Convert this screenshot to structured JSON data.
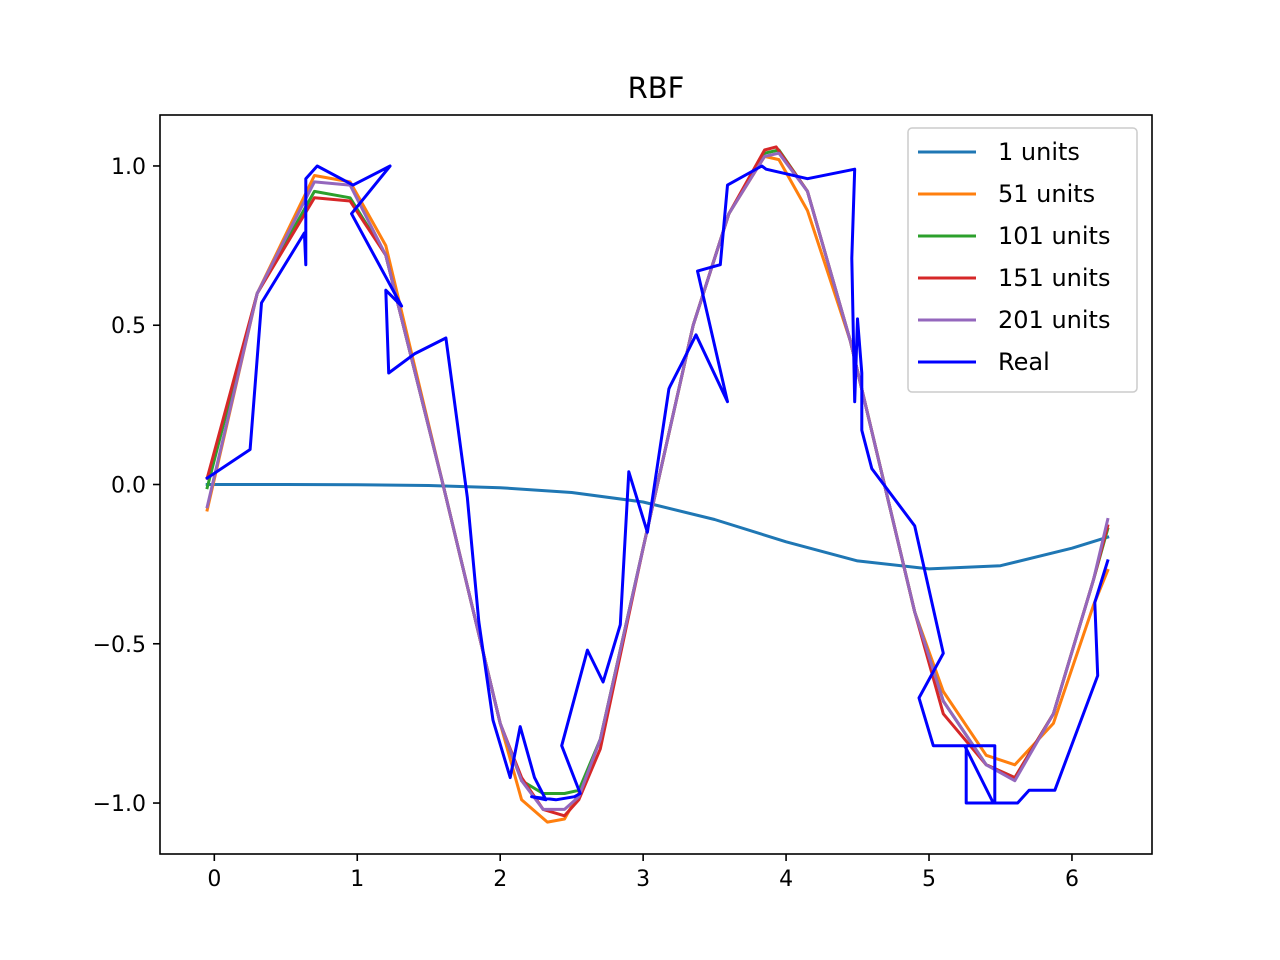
{
  "chart_data": {
    "type": "line",
    "title": "RBF",
    "xlabel": "",
    "ylabel": "",
    "xlim": [
      -0.38,
      6.56
    ],
    "ylim": [
      -1.16,
      1.16
    ],
    "xticks": [
      0,
      1,
      2,
      3,
      4,
      5,
      6
    ],
    "xtick_labels": [
      "0",
      "1",
      "2",
      "3",
      "4",
      "5",
      "6"
    ],
    "yticks": [
      -1.0,
      -0.5,
      0.0,
      0.5,
      1.0
    ],
    "ytick_labels": [
      "−1.0",
      "−0.5",
      "0.0",
      "0.5",
      "1.0"
    ],
    "grid": false,
    "legend_position": "upper right",
    "series": [
      {
        "name": "1 units",
        "color": "#1f77b4",
        "x": [
          -0.05,
          0.5,
          1.0,
          1.5,
          2.0,
          2.5,
          3.0,
          3.5,
          4.0,
          4.5,
          5.0,
          5.5,
          6.0,
          6.25
        ],
        "y": [
          0.0,
          0.0,
          -0.001,
          -0.003,
          -0.01,
          -0.025,
          -0.055,
          -0.11,
          -0.18,
          -0.24,
          -0.265,
          -0.255,
          -0.2,
          -0.165
        ]
      },
      {
        "name": "51 units",
        "color": "#ff7f0e",
        "x": [
          -0.05,
          0.3,
          0.7,
          0.95,
          1.2,
          1.6,
          2.0,
          2.15,
          2.33,
          2.45,
          2.55,
          2.7,
          3.0,
          3.35,
          3.6,
          3.85,
          3.95,
          4.15,
          4.45,
          4.9,
          5.1,
          5.4,
          5.6,
          5.87,
          6.15,
          6.25
        ],
        "y": [
          -0.08,
          0.6,
          0.97,
          0.95,
          0.75,
          0.0,
          -0.75,
          -0.99,
          -1.06,
          -1.05,
          -0.97,
          -0.8,
          -0.2,
          0.5,
          0.85,
          1.03,
          1.02,
          0.86,
          0.45,
          -0.4,
          -0.65,
          -0.85,
          -0.88,
          -0.75,
          -0.38,
          -0.27
        ]
      },
      {
        "name": "101 units",
        "color": "#2ca02c",
        "x": [
          -0.05,
          0.3,
          0.7,
          0.95,
          1.2,
          1.6,
          2.0,
          2.15,
          2.3,
          2.45,
          2.55,
          2.7,
          3.0,
          3.35,
          3.6,
          3.85,
          3.95,
          4.15,
          4.45,
          4.9,
          5.1,
          5.4,
          5.6,
          5.87,
          6.15,
          6.25
        ],
        "y": [
          -0.01,
          0.6,
          0.92,
          0.9,
          0.72,
          0.0,
          -0.75,
          -0.93,
          -0.97,
          -0.97,
          -0.96,
          -0.8,
          -0.2,
          0.5,
          0.85,
          1.04,
          1.05,
          0.92,
          0.45,
          -0.4,
          -0.68,
          -0.88,
          -0.92,
          -0.72,
          -0.3,
          -0.14
        ]
      },
      {
        "name": "151 units",
        "color": "#d62728",
        "x": [
          -0.05,
          0.3,
          0.7,
          0.95,
          1.2,
          1.6,
          2.0,
          2.15,
          2.3,
          2.45,
          2.55,
          2.7,
          3.0,
          3.35,
          3.6,
          3.85,
          3.93,
          4.15,
          4.45,
          4.9,
          5.1,
          5.4,
          5.6,
          5.87,
          6.15,
          6.25
        ],
        "y": [
          0.02,
          0.6,
          0.9,
          0.89,
          0.72,
          0.0,
          -0.75,
          -0.92,
          -1.02,
          -1.04,
          -0.99,
          -0.83,
          -0.2,
          0.5,
          0.85,
          1.05,
          1.06,
          0.92,
          0.45,
          -0.4,
          -0.72,
          -0.88,
          -0.92,
          -0.72,
          -0.3,
          -0.13
        ]
      },
      {
        "name": "201 units",
        "color": "#9467bd",
        "x": [
          -0.05,
          0.3,
          0.7,
          0.95,
          1.2,
          1.6,
          2.0,
          2.15,
          2.3,
          2.45,
          2.55,
          2.7,
          3.0,
          3.35,
          3.6,
          3.85,
          3.95,
          4.15,
          4.45,
          4.9,
          5.1,
          5.4,
          5.6,
          5.87,
          6.15,
          6.25
        ],
        "y": [
          -0.07,
          0.6,
          0.95,
          0.94,
          0.72,
          0.0,
          -0.75,
          -0.93,
          -1.02,
          -1.02,
          -0.98,
          -0.8,
          -0.2,
          0.5,
          0.85,
          1.03,
          1.04,
          0.92,
          0.45,
          -0.4,
          -0.68,
          -0.88,
          -0.93,
          -0.72,
          -0.3,
          -0.11
        ]
      },
      {
        "name": "Real",
        "color": "#0000ff",
        "x": [
          -0.05,
          0.25,
          0.33,
          0.63,
          0.64,
          0.64,
          0.72,
          0.97,
          1.23,
          0.96,
          1.31,
          1.2,
          1.22,
          1.4,
          1.62,
          1.77,
          1.85,
          1.95,
          2.07,
          2.14,
          2.24,
          2.32,
          2.22,
          2.39,
          2.52,
          2.56,
          2.43,
          2.61,
          2.72,
          2.84,
          2.9,
          3.03,
          3.18,
          3.19,
          3.27,
          3.37,
          3.59,
          3.38,
          3.54,
          3.59,
          3.83,
          3.86,
          4.15,
          4.48,
          4.46,
          4.48,
          4.5,
          4.53,
          4.53,
          4.6,
          4.9,
          5.1,
          4.93,
          5.03,
          5.03,
          5.26,
          5.26,
          5.46,
          5.46,
          5.25,
          5.45,
          5.62,
          5.7,
          5.88,
          6.18,
          6.16,
          6.25
        ],
        "y": [
          0.02,
          0.11,
          0.57,
          0.79,
          0.69,
          0.96,
          1.0,
          0.94,
          1.0,
          0.85,
          0.56,
          0.61,
          0.35,
          0.41,
          0.46,
          -0.04,
          -0.43,
          -0.74,
          -0.92,
          -0.76,
          -0.92,
          -0.99,
          -0.98,
          -0.99,
          -0.98,
          -0.97,
          -0.82,
          -0.52,
          -0.62,
          -0.44,
          0.04,
          -0.15,
          0.3,
          0.31,
          0.38,
          0.47,
          0.26,
          0.67,
          0.69,
          0.94,
          1.0,
          0.99,
          0.96,
          0.99,
          0.71,
          0.26,
          0.52,
          0.35,
          0.17,
          0.05,
          -0.13,
          -0.53,
          -0.67,
          -0.82,
          -0.82,
          -0.82,
          -1.0,
          -1.0,
          -0.82,
          -0.82,
          -1.0,
          -1.0,
          -0.96,
          -0.96,
          -0.6,
          -0.37,
          -0.24
        ]
      }
    ]
  }
}
